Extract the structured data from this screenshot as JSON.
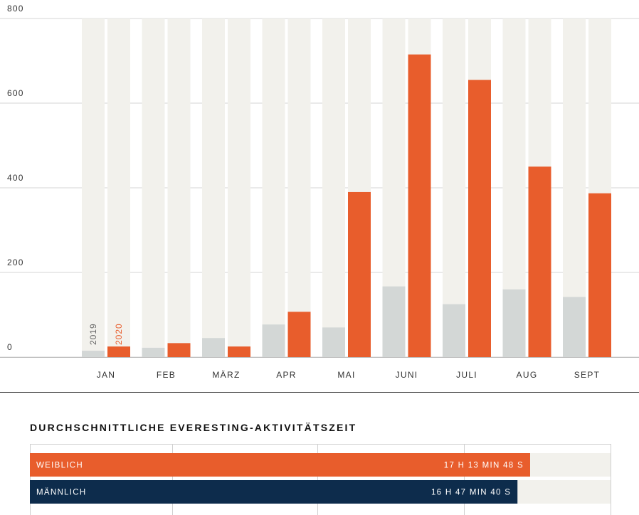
{
  "chart_data": [
    {
      "type": "bar",
      "categories": [
        "JAN",
        "FEB",
        "MÄRZ",
        "APR",
        "MAI",
        "JUNI",
        "JULI",
        "AUG",
        "SEPT"
      ],
      "series": [
        {
          "name": "2019",
          "color": "#d3d7d6",
          "values": [
            15,
            22,
            45,
            77,
            70,
            167,
            125,
            160,
            142
          ]
        },
        {
          "name": "2020",
          "color": "#e85d2c",
          "values": [
            25,
            33,
            25,
            107,
            390,
            715,
            655,
            450,
            387
          ]
        }
      ],
      "background_bar_color": "#f2f1ec",
      "yticks": [
        "800",
        "600",
        "400",
        "200",
        "0"
      ],
      "ylim": [
        0,
        800
      ],
      "grid": true,
      "legend": "inside first category, rotated labels"
    },
    {
      "type": "bar",
      "orientation": "horizontal",
      "title": "DURCHSCHNITTLICHE EVERESTING-AKTIVITÄTSZEIT",
      "max_seconds": 72000,
      "bars": [
        {
          "label": "WEIBLICH",
          "value_label": "17 H 13 MIN 48 S",
          "seconds": 62028,
          "color": "#e85d2c"
        },
        {
          "label": "MÄNNLICH",
          "value_label": "16 H 47 MIN 40 S",
          "seconds": 60460,
          "color": "#0d2c4c"
        }
      ],
      "background_bar_color": "#f2f1ec"
    }
  ]
}
